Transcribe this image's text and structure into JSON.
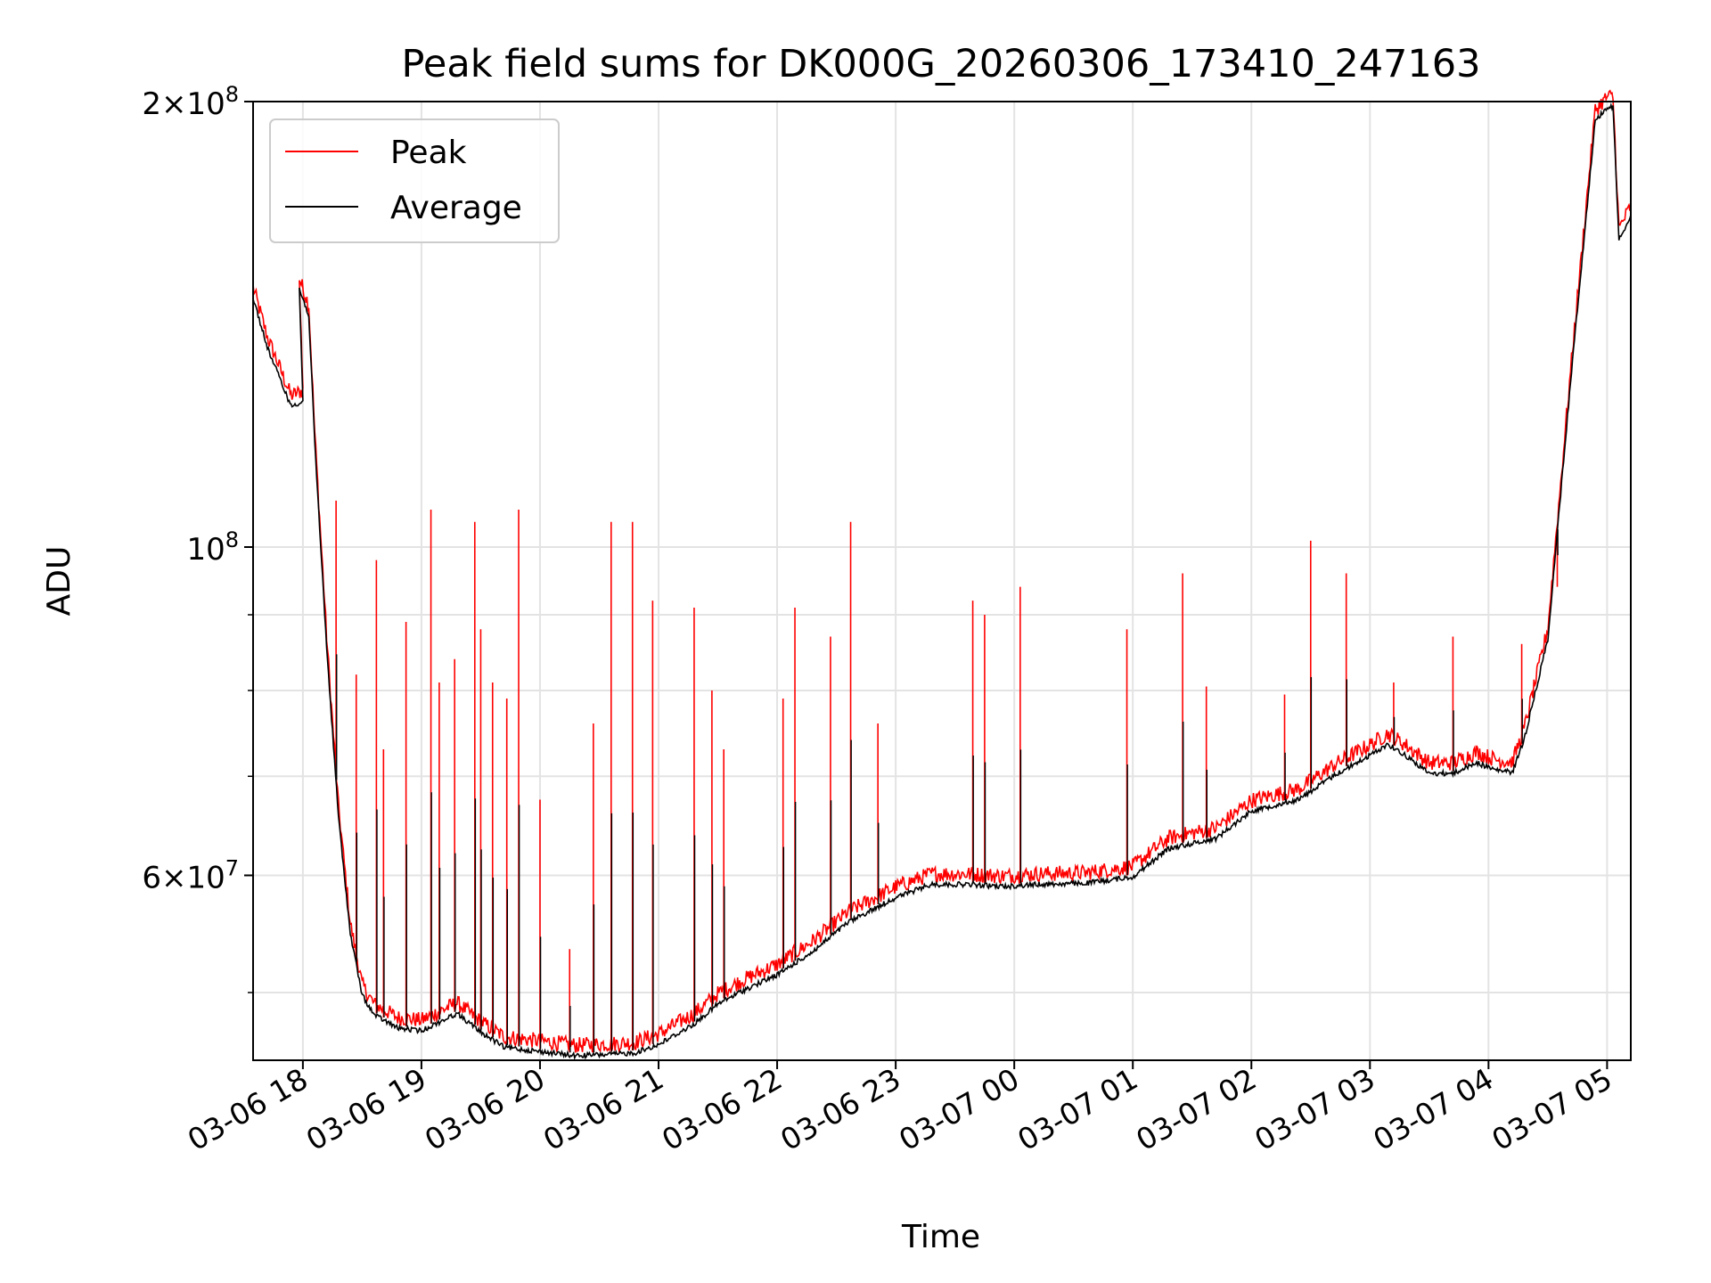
{
  "chart_data": {
    "type": "line",
    "title": "Peak field sums for DK000G_20260306_173410_247163",
    "xlabel": "Time",
    "ylabel": "ADU",
    "yscale": "log",
    "ylim": [
      45000000,
      200000000
    ],
    "xlim_hours": [
      -0.42,
      11.2
    ],
    "grid": true,
    "legend": {
      "position": "top-left",
      "entries": [
        "Peak",
        "Average"
      ]
    },
    "xticks": [
      {
        "hour": 0,
        "label": "03-06 18"
      },
      {
        "hour": 1,
        "label": "03-06 19"
      },
      {
        "hour": 2,
        "label": "03-06 20"
      },
      {
        "hour": 3,
        "label": "03-06 21"
      },
      {
        "hour": 4,
        "label": "03-06 22"
      },
      {
        "hour": 5,
        "label": "03-06 23"
      },
      {
        "hour": 6,
        "label": "03-07 00"
      },
      {
        "hour": 7,
        "label": "03-07 01"
      },
      {
        "hour": 8,
        "label": "03-07 02"
      },
      {
        "hour": 9,
        "label": "03-07 03"
      },
      {
        "hour": 10,
        "label": "03-07 04"
      },
      {
        "hour": 11,
        "label": "03-07 05"
      }
    ],
    "yticks_major": [
      {
        "value": 60000000,
        "mantissa": "6",
        "exponent": "7"
      },
      {
        "value": 100000000,
        "mantissa": "",
        "exponent": "8"
      },
      {
        "value": 200000000,
        "mantissa": "2",
        "exponent": "8"
      }
    ],
    "yticks_minor": [
      50000000,
      70000000,
      80000000,
      90000000
    ],
    "series": [
      {
        "name": "Average",
        "color": "#000000",
        "hours": [
          -0.42,
          -0.3,
          -0.1,
          0.0,
          -0.03,
          0.05,
          0.1,
          0.2,
          0.3,
          0.4,
          0.5,
          0.6,
          0.8,
          1.0,
          1.3,
          1.5,
          1.7,
          2.0,
          2.3,
          2.6,
          2.8,
          3.0,
          3.3,
          3.5,
          3.7,
          4.0,
          4.3,
          4.6,
          5.0,
          5.3,
          5.6,
          5.9,
          6.2,
          6.6,
          7.0,
          7.3,
          7.7,
          8.0,
          8.4,
          8.7,
          9.0,
          9.15,
          9.3,
          9.5,
          9.7,
          9.9,
          10.05,
          10.2,
          10.3,
          10.5,
          10.7,
          10.9,
          11.0,
          11.05,
          11.1,
          11.2
        ],
        "values": [
          148000000,
          137000000,
          125000000,
          126000000,
          150000000,
          144000000,
          118000000,
          86000000,
          66000000,
          55000000,
          50000000,
          48500000,
          47500000,
          47300000,
          48600000,
          47200000,
          46100000,
          45800000,
          45500000,
          45600000,
          45700000,
          46300000,
          47800000,
          49300000,
          50300000,
          51600000,
          53500000,
          56000000,
          58200000,
          59400000,
          59400000,
          59200000,
          59400000,
          59500000,
          60100000,
          62800000,
          63800000,
          66600000,
          67800000,
          70400000,
          72600000,
          73900000,
          72600000,
          70600000,
          70600000,
          71800000,
          71000000,
          70700000,
          74400000,
          87000000,
          132000000,
          195000000,
          199000000,
          199000000,
          162000000,
          168000000
        ]
      },
      {
        "name": "Peak",
        "color": "#ff0000",
        "spikes": [
          {
            "hour": 0.28,
            "value": 107500000
          },
          {
            "hour": 0.45,
            "value": 82000000
          },
          {
            "hour": 0.62,
            "value": 98000000
          },
          {
            "hour": 0.68,
            "value": 73000000
          },
          {
            "hour": 0.87,
            "value": 89000000
          },
          {
            "hour": 1.08,
            "value": 106000000
          },
          {
            "hour": 1.15,
            "value": 81000000
          },
          {
            "hour": 1.28,
            "value": 84000000
          },
          {
            "hour": 1.45,
            "value": 104000000
          },
          {
            "hour": 1.5,
            "value": 88000000
          },
          {
            "hour": 1.6,
            "value": 81000000
          },
          {
            "hour": 1.72,
            "value": 79000000
          },
          {
            "hour": 1.82,
            "value": 106000000
          },
          {
            "hour": 2.0,
            "value": 67500000
          },
          {
            "hour": 2.25,
            "value": 53500000
          },
          {
            "hour": 2.45,
            "value": 76000000
          },
          {
            "hour": 2.6,
            "value": 104000000
          },
          {
            "hour": 2.78,
            "value": 104000000
          },
          {
            "hour": 2.95,
            "value": 92000000
          },
          {
            "hour": 3.3,
            "value": 91000000
          },
          {
            "hour": 3.45,
            "value": 80000000
          },
          {
            "hour": 3.55,
            "value": 73000000
          },
          {
            "hour": 4.05,
            "value": 79000000
          },
          {
            "hour": 4.15,
            "value": 91000000
          },
          {
            "hour": 4.45,
            "value": 87000000
          },
          {
            "hour": 4.62,
            "value": 104000000
          },
          {
            "hour": 4.85,
            "value": 76000000
          },
          {
            "hour": 5.65,
            "value": 92000000
          },
          {
            "hour": 5.75,
            "value": 90000000
          },
          {
            "hour": 6.05,
            "value": 94000000
          },
          {
            "hour": 6.95,
            "value": 88000000
          },
          {
            "hour": 7.42,
            "value": 96000000
          },
          {
            "hour": 7.62,
            "value": 80500000
          },
          {
            "hour": 8.28,
            "value": 79500000
          },
          {
            "hour": 8.5,
            "value": 101000000
          },
          {
            "hour": 8.8,
            "value": 96000000
          },
          {
            "hour": 9.2,
            "value": 81000000
          },
          {
            "hour": 9.7,
            "value": 87000000
          },
          {
            "hour": 10.28,
            "value": 86000000
          },
          {
            "hour": 10.58,
            "value": 94000000
          }
        ]
      }
    ]
  }
}
